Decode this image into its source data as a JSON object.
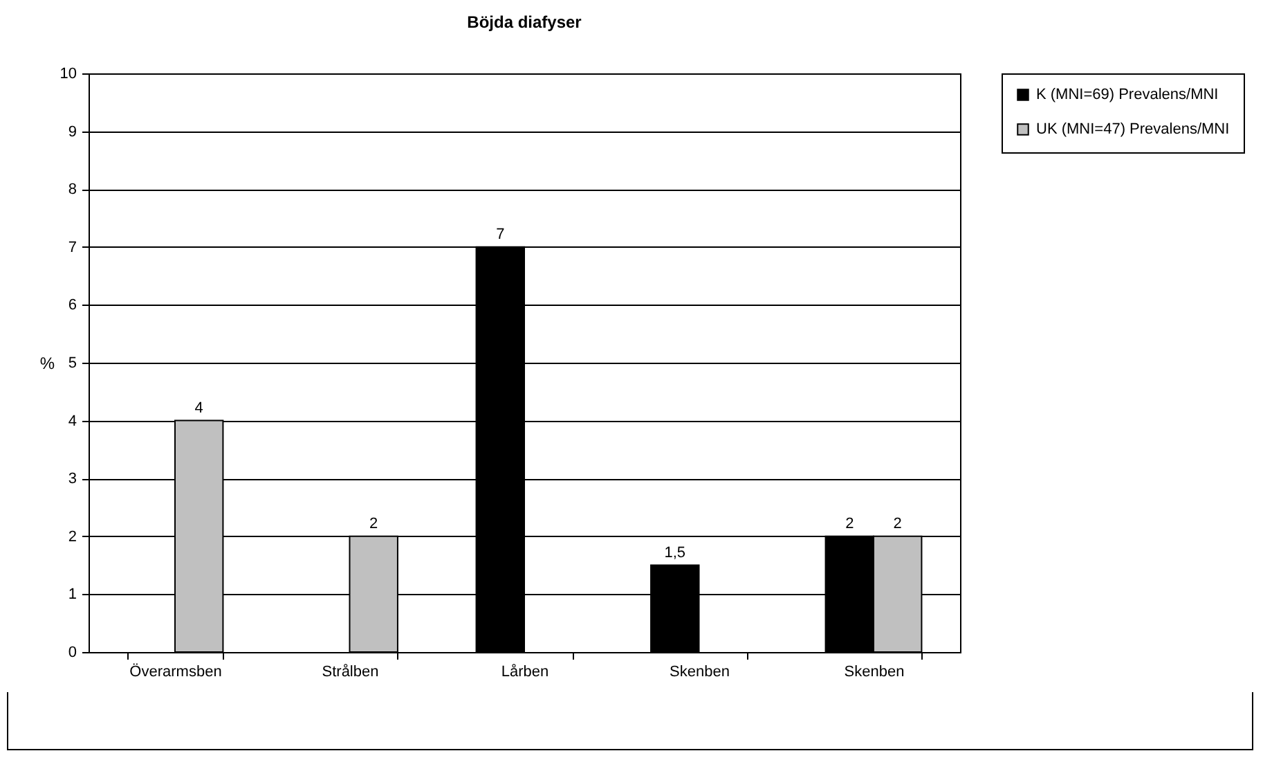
{
  "chart_data": {
    "type": "bar",
    "title": "Böjda diafyser",
    "ylabel": "%",
    "categories": [
      "Överarmsben",
      "Strålben",
      "Lårben",
      "Skenben",
      "Skenben"
    ],
    "series": [
      {
        "name": "K (MNI=69) Prevalens/MNI",
        "color": "#000000",
        "values": [
          null,
          null,
          7,
          1.5,
          2
        ],
        "value_labels": [
          null,
          null,
          "7",
          "1,5",
          "2"
        ]
      },
      {
        "name": "UK (MNI=47) Prevalens/MNI",
        "color": "#c0c0c0",
        "values": [
          4,
          2,
          null,
          null,
          2
        ],
        "value_labels": [
          "4",
          "2",
          null,
          null,
          "2"
        ]
      }
    ],
    "ylim": [
      0,
      10
    ],
    "yticks": [
      0,
      1,
      2,
      3,
      4,
      5,
      6,
      7,
      8,
      9,
      10
    ],
    "grid": "y",
    "legend": "right"
  }
}
